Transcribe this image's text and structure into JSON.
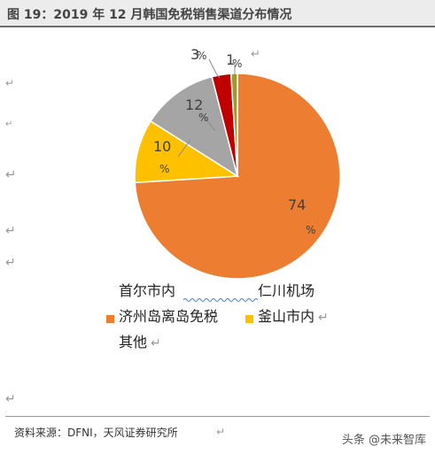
{
  "title": "图 19：2019 年 12 月韩国免税销售渠道分布情况",
  "source": "资料来源：DFNI，天风证券研究所",
  "watermark": "头条 @未来智库",
  "chart_data": {
    "type": "pie",
    "start_angle_deg": 0,
    "direction": "clockwise",
    "slices": [
      {
        "name": "济州岛离岛免税",
        "value": 74,
        "color": "#ed7d31"
      },
      {
        "name": "釜山市内",
        "value": 10,
        "color": "#ffc000"
      },
      {
        "name": "其他",
        "value": 12,
        "color": "#a5a5a5"
      },
      {
        "name": "仁川机场",
        "value": 3,
        "color": "#c00000"
      },
      {
        "name": "首尔市内",
        "value": 1,
        "color": "#9e9a2c"
      }
    ],
    "data_labels": [
      {
        "number": "74",
        "pct": "%"
      },
      {
        "number": "10",
        "pct": "%"
      },
      {
        "number": "12",
        "pct": "%"
      },
      {
        "number": "3",
        "pct": "%"
      },
      {
        "number": "1",
        "pct": "%"
      }
    ],
    "legend": [
      {
        "name": "首尔市内",
        "swatch": false
      },
      {
        "name": "仁川机场",
        "swatch": false
      },
      {
        "name": "济州岛离岛免税",
        "swatch": true,
        "color": "#ed7d31"
      },
      {
        "name": "釜山市内",
        "swatch": true,
        "color": "#ffc000"
      },
      {
        "name": "其他",
        "swatch": false
      }
    ],
    "legend_placement": "bottom"
  }
}
